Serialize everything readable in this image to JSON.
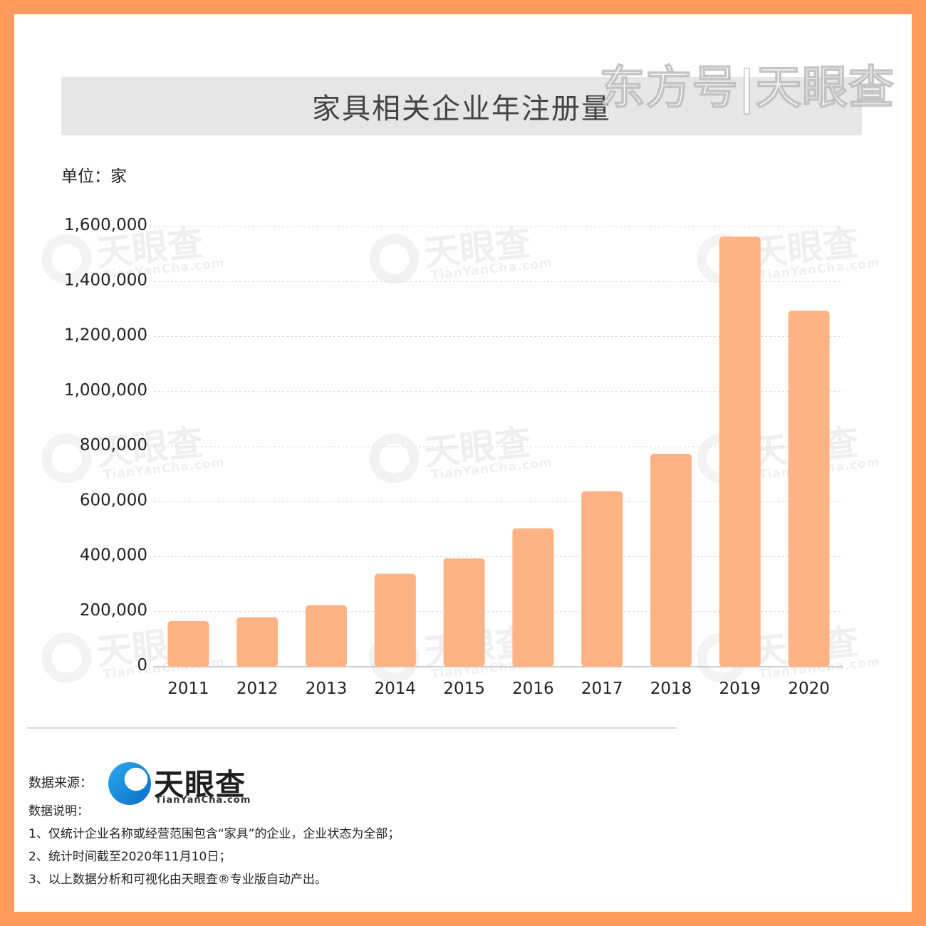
{
  "header": {
    "title": "家具相关企业年注册量",
    "corner_watermark": "东方号|天眼查",
    "unit": "单位：家"
  },
  "watermark": {
    "name": "天眼查",
    "sub": "TianYanCha.com"
  },
  "chart_data": {
    "type": "bar",
    "title": "家具相关企业年注册量",
    "ylabel": "单位：家",
    "categories": [
      "2011",
      "2012",
      "2013",
      "2014",
      "2015",
      "2016",
      "2017",
      "2018",
      "2019",
      "2020"
    ],
    "values": [
      166000,
      180000,
      224000,
      338000,
      394000,
      503000,
      638000,
      774000,
      1563000,
      1294000
    ],
    "ylim": [
      0,
      1600000
    ],
    "yticks": [
      0,
      200000,
      400000,
      600000,
      800000,
      1000000,
      1200000,
      1400000,
      1600000
    ],
    "ytick_labels": [
      "0",
      "200,000",
      "400,000",
      "600,000",
      "800,000",
      "1,000,000",
      "1,200,000",
      "1,400,000",
      "1,600,000"
    ],
    "grid": true,
    "bar_color": "#ffb284"
  },
  "footer": {
    "source_label": "数据来源：",
    "logo_name": "天眼查",
    "logo_sub": "TianYanCha.com",
    "notes_label": "数据说明：",
    "notes": [
      "1、仅统计企业名称或经营范围包含“家具”的企业，企业状态为全部；",
      "2、统计时间截至2020年11月10日；",
      "3、以上数据分析和可视化由天眼查®专业版自动产出。"
    ]
  }
}
